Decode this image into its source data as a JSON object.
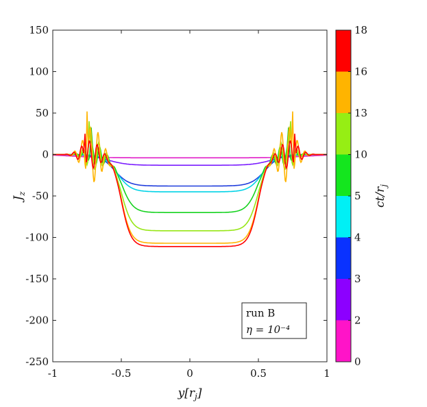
{
  "chart_data": {
    "type": "line",
    "title": "",
    "xlabel": "y[r_j]",
    "ylabel": "J_z",
    "xlim": [
      -1,
      1
    ],
    "ylim": [
      -250,
      150
    ],
    "x_ticks": [
      "-1",
      "-0.5",
      "0",
      "0.5",
      "1"
    ],
    "y_ticks": [
      "150",
      "100",
      "50",
      "0",
      "-50",
      "-100",
      "-150",
      "-200",
      "-250"
    ],
    "annotation": {
      "line1": "run B",
      "line2": "η = 10⁻⁴"
    },
    "colorbar": {
      "label": "ct/r_j",
      "tick_labels": [
        "0",
        "2",
        "3",
        "4",
        "5",
        "10",
        "13",
        "16",
        "18"
      ],
      "colors": [
        "#ff14c8",
        "#8c00ff",
        "#0a32ff",
        "#00f0f5",
        "#14e61e",
        "#96ee14",
        "#ffb400",
        "#ff0000"
      ]
    },
    "series": [
      {
        "name": "ct/r_j = 2",
        "color": "#e01cc8",
        "depth": -4,
        "halfwidth": 0.85,
        "edge": 0.3,
        "osc": 0
      },
      {
        "name": "ct/r_j = 3",
        "color": "#7a1cff",
        "depth": -13,
        "halfwidth": 0.6,
        "edge": 0.2,
        "osc": 0
      },
      {
        "name": "ct/r_j = 4",
        "color": "#1f3cdc",
        "depth": -38,
        "halfwidth": 0.55,
        "edge": 0.15,
        "osc": 0
      },
      {
        "name": "ct/r_j = 5",
        "color": "#00d2e6",
        "depth": -45,
        "halfwidth": 0.53,
        "edge": 0.14,
        "osc": 0
      },
      {
        "name": "ct/r_j = 10",
        "color": "#14d21e",
        "depth": -70,
        "halfwidth": 0.5,
        "edge": 0.12,
        "osc": 25
      },
      {
        "name": "ct/r_j = 13",
        "color": "#96e614",
        "depth": -92,
        "halfwidth": 0.5,
        "edge": 0.11,
        "osc": 40
      },
      {
        "name": "ct/r_j = 16",
        "color": "#ffb400",
        "depth": -107,
        "halfwidth": 0.5,
        "edge": 0.1,
        "osc": 75
      },
      {
        "name": "ct/r_j = 18",
        "color": "#ff0000",
        "depth": -111,
        "halfwidth": 0.5,
        "edge": 0.1,
        "osc": 38
      }
    ]
  }
}
